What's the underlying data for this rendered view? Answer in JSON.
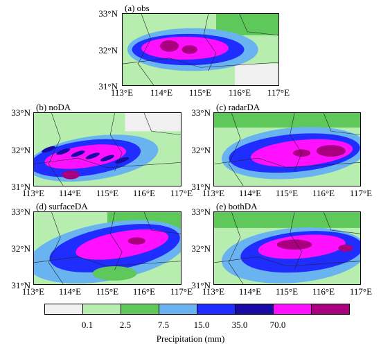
{
  "panels": [
    {
      "id": "obs",
      "title": "(a) obs"
    },
    {
      "id": "noDA",
      "title": "(b) noDA"
    },
    {
      "id": "radarDA",
      "title": "(c) radarDA"
    },
    {
      "id": "surfaceDA",
      "title": "(d) surfaceDA"
    },
    {
      "id": "bothDA",
      "title": "(e) bothDA"
    }
  ],
  "lat_ticks": [
    "33°N",
    "32°N",
    "31°N"
  ],
  "lon_ticks": [
    "113°E",
    "114°E",
    "115°E",
    "116°E",
    "117°E"
  ],
  "colorbar": {
    "title": "Precipitation (mm)",
    "labels": [
      "0.1",
      "2.5",
      "7.5",
      "15.0",
      "35.0",
      "70.0"
    ],
    "colors": [
      "#f0f0f0",
      "#b7eeb0",
      "#5ec95a",
      "#69b3f0",
      "#1f2dff",
      "#1a0aa5",
      "#ff11ff",
      "#a8007e"
    ]
  }
}
